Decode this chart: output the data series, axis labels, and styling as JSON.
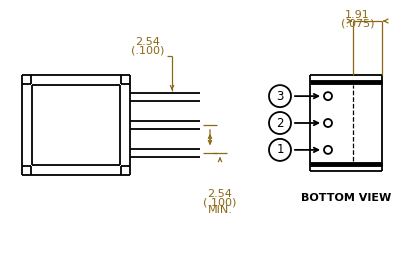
{
  "bg_color": "#ffffff",
  "line_color": "#000000",
  "dim_color": "#8B6914",
  "label_bottom_view": "BOTTOM VIEW",
  "dim1_top": "2.54",
  "dim1_bot": "(.100)",
  "dim2_top": "2.54",
  "dim2_bot": "(.100)",
  "dim2_extra": "MIN.",
  "dim3_top": "1.91",
  "dim3_bot": "(.075)"
}
